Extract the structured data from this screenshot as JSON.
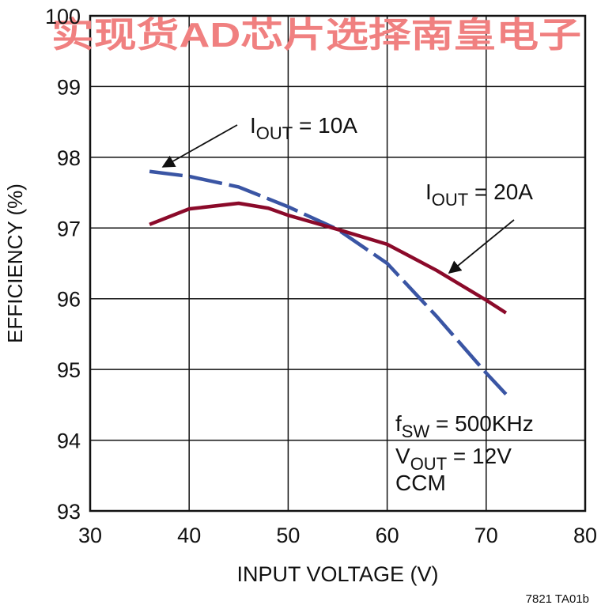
{
  "chart_data": {
    "type": "line",
    "watermark": "实现货AD芯片选择南皇电子",
    "xlabel": "INPUT VOLTAGE  (V)",
    "ylabel": "EFFICIENCY (%)",
    "footnote": "7821 TA01b",
    "xlim": [
      30,
      80
    ],
    "xticks": [
      30,
      40,
      50,
      60,
      70,
      80
    ],
    "ylim": [
      93,
      100
    ],
    "yticks": [
      93,
      94,
      95,
      96,
      97,
      98,
      99,
      100
    ],
    "grid": true,
    "series": [
      {
        "color": "#3a55a4",
        "dashed": true,
        "x": [
          36,
          40,
          45,
          50,
          55,
          60,
          65,
          70,
          72
        ],
        "values": [
          97.8,
          97.73,
          97.58,
          97.3,
          96.98,
          96.5,
          95.75,
          94.95,
          94.65
        ]
      },
      {
        "color": "#8b0a2a",
        "dashed": false,
        "x": [
          36,
          40,
          45,
          48,
          50,
          55,
          60,
          65,
          70,
          72
        ],
        "values": [
          97.05,
          97.27,
          97.35,
          97.28,
          97.18,
          96.98,
          96.77,
          96.4,
          95.98,
          95.8
        ]
      }
    ],
    "annotations": [
      {
        "lines": [
          [
            {
              "text": "I"
            },
            {
              "text": "OUT",
              "sub": true
            },
            {
              "text": " = 10A"
            }
          ]
        ]
      },
      {
        "lines": [
          [
            {
              "text": "I"
            },
            {
              "text": "OUT",
              "sub": true
            },
            {
              "text": " = 20A"
            }
          ]
        ]
      },
      {
        "lines": [
          [
            {
              "text": "f"
            },
            {
              "text": "SW",
              "sub": true
            },
            {
              "text": " = 500KHz"
            }
          ],
          [
            {
              "text": "V"
            },
            {
              "text": "OUT",
              "sub": true
            },
            {
              "text": " = 12V"
            }
          ],
          [
            {
              "text": "CCM"
            }
          ]
        ]
      }
    ]
  }
}
